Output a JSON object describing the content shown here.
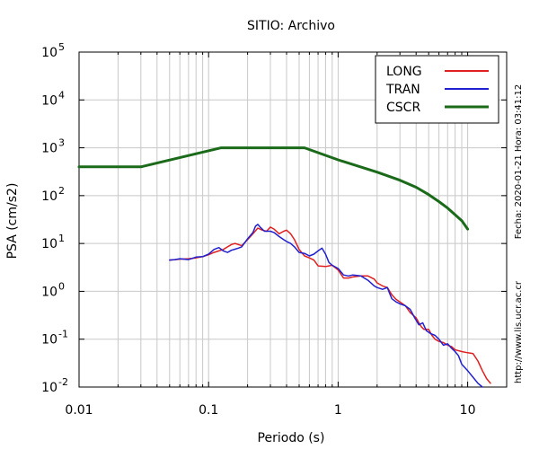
{
  "chart_data": {
    "type": "line",
    "title": "SITIO: Archivo",
    "xlabel": "Periodo (s)",
    "ylabel": "PSA (cm/s2)",
    "x_scale": "log",
    "y_scale": "log",
    "xlim": [
      0.01,
      20
    ],
    "ylim": [
      0.01,
      100000
    ],
    "x_ticks": [
      {
        "value": 0.01,
        "label": "0.01"
      },
      {
        "value": 0.1,
        "label": "0.1"
      },
      {
        "value": 1,
        "label": "1"
      },
      {
        "value": 10,
        "label": "10"
      }
    ],
    "y_ticks": [
      {
        "value": 0.01,
        "base": "10",
        "exp": "-2"
      },
      {
        "value": 0.1,
        "base": "10",
        "exp": "-1"
      },
      {
        "value": 1,
        "base": "10",
        "exp": "0"
      },
      {
        "value": 10,
        "base": "10",
        "exp": "1"
      },
      {
        "value": 100,
        "base": "10",
        "exp": "2"
      },
      {
        "value": 1000,
        "base": "10",
        "exp": "3"
      },
      {
        "value": 10000,
        "base": "10",
        "exp": "4"
      },
      {
        "value": 100000,
        "base": "10",
        "exp": "5"
      }
    ],
    "grid": true,
    "legend_position": "top-right",
    "side_text_right": "Fecha: 2020-01-21 Hora: 03:41:12",
    "side_text_bottom": "http://www.lis.ucr.ac.cr",
    "series": [
      {
        "name": "LONG",
        "color": "#e02020",
        "points": [
          [
            0.05,
            4.5
          ],
          [
            0.06,
            4.7
          ],
          [
            0.07,
            4.8
          ],
          [
            0.08,
            5.0
          ],
          [
            0.09,
            5.3
          ],
          [
            0.1,
            5.8
          ],
          [
            0.11,
            6.5
          ],
          [
            0.12,
            7.0
          ],
          [
            0.13,
            7.5
          ],
          [
            0.14,
            8.5
          ],
          [
            0.15,
            9.5
          ],
          [
            0.16,
            10
          ],
          [
            0.17,
            9.5
          ],
          [
            0.18,
            9.0
          ],
          [
            0.2,
            12
          ],
          [
            0.22,
            16
          ],
          [
            0.24,
            21
          ],
          [
            0.26,
            19
          ],
          [
            0.28,
            18
          ],
          [
            0.3,
            22
          ],
          [
            0.32,
            20
          ],
          [
            0.35,
            16
          ],
          [
            0.38,
            18
          ],
          [
            0.4,
            19
          ],
          [
            0.43,
            16
          ],
          [
            0.46,
            12
          ],
          [
            0.5,
            7.5
          ],
          [
            0.55,
            5.5
          ],
          [
            0.6,
            5.0
          ],
          [
            0.65,
            4.5
          ],
          [
            0.7,
            3.4
          ],
          [
            0.8,
            3.3
          ],
          [
            0.9,
            3.5
          ],
          [
            1.0,
            2.8
          ],
          [
            1.1,
            1.9
          ],
          [
            1.2,
            1.9
          ],
          [
            1.3,
            2.0
          ],
          [
            1.5,
            2.1
          ],
          [
            1.7,
            2.1
          ],
          [
            1.9,
            1.8
          ],
          [
            2.0,
            1.5
          ],
          [
            2.2,
            1.3
          ],
          [
            2.4,
            1.2
          ],
          [
            2.5,
            1.0
          ],
          [
            2.6,
            0.85
          ],
          [
            2.8,
            0.68
          ],
          [
            3.0,
            0.6
          ],
          [
            3.3,
            0.5
          ],
          [
            3.6,
            0.36
          ],
          [
            4.0,
            0.28
          ],
          [
            4.2,
            0.22
          ],
          [
            4.4,
            0.18
          ],
          [
            4.6,
            0.16
          ],
          [
            5.0,
            0.16
          ],
          [
            5.3,
            0.12
          ],
          [
            5.6,
            0.1
          ],
          [
            6.0,
            0.09
          ],
          [
            6.5,
            0.085
          ],
          [
            7.0,
            0.075
          ],
          [
            7.5,
            0.07
          ],
          [
            8.0,
            0.06
          ],
          [
            9.0,
            0.055
          ],
          [
            10,
            0.052
          ],
          [
            11,
            0.05
          ],
          [
            12,
            0.035
          ],
          [
            13,
            0.022
          ],
          [
            14,
            0.015
          ],
          [
            15,
            0.012
          ]
        ]
      },
      {
        "name": "TRAN",
        "color": "#2020d0",
        "points": [
          [
            0.05,
            4.5
          ],
          [
            0.055,
            4.6
          ],
          [
            0.06,
            4.8
          ],
          [
            0.065,
            4.7
          ],
          [
            0.07,
            4.6
          ],
          [
            0.08,
            5.2
          ],
          [
            0.09,
            5.3
          ],
          [
            0.1,
            6.0
          ],
          [
            0.11,
            7.5
          ],
          [
            0.12,
            8.2
          ],
          [
            0.13,
            7.0
          ],
          [
            0.14,
            6.5
          ],
          [
            0.15,
            7.2
          ],
          [
            0.16,
            7.6
          ],
          [
            0.17,
            8.0
          ],
          [
            0.18,
            8.5
          ],
          [
            0.2,
            12.5
          ],
          [
            0.22,
            17
          ],
          [
            0.23,
            23
          ],
          [
            0.24,
            25
          ],
          [
            0.25,
            22
          ],
          [
            0.27,
            18
          ],
          [
            0.3,
            18
          ],
          [
            0.32,
            17
          ],
          [
            0.35,
            14
          ],
          [
            0.38,
            12
          ],
          [
            0.4,
            11
          ],
          [
            0.43,
            10
          ],
          [
            0.46,
            8.5
          ],
          [
            0.5,
            6.5
          ],
          [
            0.55,
            6.2
          ],
          [
            0.6,
            5.5
          ],
          [
            0.65,
            6.0
          ],
          [
            0.7,
            7.0
          ],
          [
            0.75,
            8.0
          ],
          [
            0.8,
            6.0
          ],
          [
            0.85,
            4.0
          ],
          [
            0.9,
            3.5
          ],
          [
            1.0,
            3.0
          ],
          [
            1.1,
            2.2
          ],
          [
            1.2,
            2.1
          ],
          [
            1.3,
            2.2
          ],
          [
            1.5,
            2.1
          ],
          [
            1.7,
            1.7
          ],
          [
            1.9,
            1.3
          ],
          [
            2.0,
            1.2
          ],
          [
            2.2,
            1.1
          ],
          [
            2.4,
            1.2
          ],
          [
            2.5,
            0.9
          ],
          [
            2.6,
            0.7
          ],
          [
            2.8,
            0.6
          ],
          [
            3.0,
            0.55
          ],
          [
            3.3,
            0.5
          ],
          [
            3.6,
            0.42
          ],
          [
            3.9,
            0.28
          ],
          [
            4.2,
            0.2
          ],
          [
            4.5,
            0.22
          ],
          [
            4.8,
            0.15
          ],
          [
            5.2,
            0.13
          ],
          [
            5.6,
            0.12
          ],
          [
            6.0,
            0.1
          ],
          [
            6.5,
            0.075
          ],
          [
            7.0,
            0.08
          ],
          [
            7.5,
            0.065
          ],
          [
            8.0,
            0.055
          ],
          [
            8.5,
            0.045
          ],
          [
            9.0,
            0.03
          ],
          [
            10,
            0.022
          ],
          [
            11,
            0.016
          ],
          [
            12,
            0.012
          ],
          [
            13,
            0.01
          ]
        ]
      },
      {
        "name": "CSCR",
        "color": "#1a6a1a",
        "points": [
          [
            0.01,
            400
          ],
          [
            0.03,
            400
          ],
          [
            0.125,
            1000
          ],
          [
            0.55,
            1000
          ],
          [
            1,
            560
          ],
          [
            2,
            310
          ],
          [
            3,
            210
          ],
          [
            4,
            150
          ],
          [
            5,
            105
          ],
          [
            6,
            75
          ],
          [
            7,
            55
          ],
          [
            8,
            40
          ],
          [
            9,
            30
          ],
          [
            10,
            20
          ]
        ]
      }
    ]
  }
}
